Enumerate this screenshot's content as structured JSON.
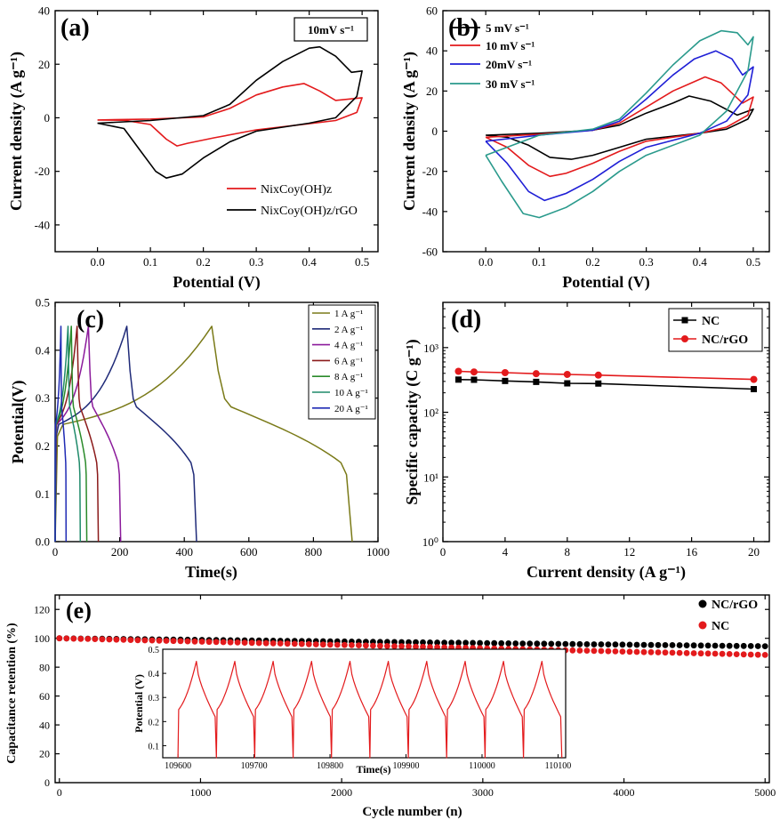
{
  "chart_data": [
    {
      "id": "a",
      "type": "line",
      "panel_label": "(a)",
      "xlabel": "Potential (V)",
      "ylabel": "Current density (A g⁻¹)",
      "xlim": [
        -0.08,
        0.53
      ],
      "ylim": [
        -50,
        40
      ],
      "xticks": [
        0.0,
        0.1,
        0.2,
        0.3,
        0.4,
        0.5
      ],
      "yticks": [
        -40,
        -20,
        0,
        20,
        40
      ],
      "xtick_labels": [
        "0.0",
        "0.1",
        "0.2",
        "0.3",
        "0.4",
        "0.5"
      ],
      "ytick_labels": [
        "-40",
        "-20",
        "0",
        "20",
        "40"
      ],
      "annotation": "10mV s⁻¹",
      "legend": [
        "NixCoy(OH)z",
        "NixCoy(OH)z/rGO"
      ],
      "series": [
        {
          "name": "NixCoy(OH)z",
          "color": "#e31a1c",
          "points": [
            [
              0.0,
              -0.8
            ],
            [
              0.1,
              -0.5
            ],
            [
              0.2,
              0.3
            ],
            [
              0.25,
              3.5
            ],
            [
              0.3,
              8.5
            ],
            [
              0.35,
              11.5
            ],
            [
              0.39,
              12.8
            ],
            [
              0.42,
              10
            ],
            [
              0.45,
              6.5
            ],
            [
              0.5,
              7.5
            ],
            [
              0.49,
              2
            ],
            [
              0.45,
              -1
            ],
            [
              0.4,
              -2.2
            ],
            [
              0.3,
              -4.5
            ],
            [
              0.22,
              -7.5
            ],
            [
              0.17,
              -9.5
            ],
            [
              0.15,
              -10.5
            ],
            [
              0.13,
              -8
            ],
            [
              0.1,
              -2.5
            ],
            [
              0.05,
              -0.9
            ],
            [
              0.0,
              -0.8
            ]
          ]
        },
        {
          "name": "NixCoy(OH)z/rGO",
          "color": "#000000",
          "points": [
            [
              0.0,
              -2
            ],
            [
              0.1,
              -1
            ],
            [
              0.2,
              0.8
            ],
            [
              0.25,
              5
            ],
            [
              0.3,
              14
            ],
            [
              0.35,
              21
            ],
            [
              0.4,
              26
            ],
            [
              0.42,
              26.5
            ],
            [
              0.45,
              23
            ],
            [
              0.48,
              17
            ],
            [
              0.5,
              17.5
            ],
            [
              0.49,
              8
            ],
            [
              0.45,
              0
            ],
            [
              0.4,
              -2
            ],
            [
              0.3,
              -5
            ],
            [
              0.25,
              -9
            ],
            [
              0.2,
              -15
            ],
            [
              0.16,
              -21
            ],
            [
              0.13,
              -22.5
            ],
            [
              0.11,
              -20
            ],
            [
              0.08,
              -12
            ],
            [
              0.05,
              -4
            ],
            [
              0.0,
              -2
            ]
          ]
        }
      ]
    },
    {
      "id": "b",
      "type": "line",
      "panel_label": "(b)",
      "xlabel": "Potential (V)",
      "ylabel": "Current density (A g⁻¹)",
      "xlim": [
        -0.08,
        0.53
      ],
      "ylim": [
        -60,
        60
      ],
      "xticks": [
        0.0,
        0.1,
        0.2,
        0.3,
        0.4,
        0.5
      ],
      "yticks": [
        -60,
        -40,
        -20,
        0,
        20,
        40,
        60
      ],
      "xtick_labels": [
        "0.0",
        "0.1",
        "0.2",
        "0.3",
        "0.4",
        "0.5"
      ],
      "ytick_labels": [
        "-60",
        "-40",
        "-20",
        "0",
        "20",
        "40",
        "60"
      ],
      "legend": [
        "5 mV s⁻¹",
        "10 mV s⁻¹",
        "20mV s⁻¹",
        "30 mV s⁻¹"
      ],
      "series": [
        {
          "name": "5 mV s⁻¹",
          "color": "#000000",
          "points": [
            [
              0.0,
              -2
            ],
            [
              0.1,
              -1
            ],
            [
              0.2,
              0.5
            ],
            [
              0.25,
              3
            ],
            [
              0.3,
              9
            ],
            [
              0.35,
              14
            ],
            [
              0.38,
              17.5
            ],
            [
              0.42,
              15
            ],
            [
              0.47,
              8
            ],
            [
              0.5,
              11
            ],
            [
              0.49,
              6
            ],
            [
              0.45,
              1
            ],
            [
              0.4,
              -1
            ],
            [
              0.3,
              -4
            ],
            [
              0.25,
              -8
            ],
            [
              0.2,
              -12
            ],
            [
              0.16,
              -14
            ],
            [
              0.12,
              -13
            ],
            [
              0.08,
              -7
            ],
            [
              0.04,
              -3
            ],
            [
              0.0,
              -2
            ]
          ]
        },
        {
          "name": "10 mV s⁻¹",
          "color": "#e31a1c",
          "points": [
            [
              0.0,
              -3
            ],
            [
              0.1,
              -1.5
            ],
            [
              0.2,
              0.5
            ],
            [
              0.25,
              4
            ],
            [
              0.3,
              12
            ],
            [
              0.35,
              20
            ],
            [
              0.41,
              27
            ],
            [
              0.44,
              24
            ],
            [
              0.48,
              14
            ],
            [
              0.5,
              17
            ],
            [
              0.49,
              8
            ],
            [
              0.45,
              2
            ],
            [
              0.4,
              -1
            ],
            [
              0.3,
              -5
            ],
            [
              0.25,
              -10
            ],
            [
              0.2,
              -16
            ],
            [
              0.15,
              -21
            ],
            [
              0.12,
              -22.5
            ],
            [
              0.08,
              -17
            ],
            [
              0.04,
              -8
            ],
            [
              0.0,
              -3
            ]
          ]
        },
        {
          "name": "20mV s⁻¹",
          "color": "#1f1fd6",
          "points": [
            [
              0.0,
              -5
            ],
            [
              0.1,
              -2
            ],
            [
              0.2,
              0.5
            ],
            [
              0.25,
              5
            ],
            [
              0.3,
              16
            ],
            [
              0.35,
              28
            ],
            [
              0.39,
              36
            ],
            [
              0.43,
              40
            ],
            [
              0.46,
              36
            ],
            [
              0.48,
              28
            ],
            [
              0.5,
              32
            ],
            [
              0.49,
              18
            ],
            [
              0.45,
              5
            ],
            [
              0.4,
              -1
            ],
            [
              0.3,
              -8
            ],
            [
              0.25,
              -15
            ],
            [
              0.2,
              -24
            ],
            [
              0.15,
              -31
            ],
            [
              0.11,
              -34.5
            ],
            [
              0.08,
              -30
            ],
            [
              0.04,
              -16
            ],
            [
              0.0,
              -5
            ]
          ]
        },
        {
          "name": "30 mV s⁻¹",
          "color": "#2a9a8c",
          "points": [
            [
              0.0,
              -12
            ],
            [
              0.1,
              -2
            ],
            [
              0.2,
              1
            ],
            [
              0.25,
              6
            ],
            [
              0.3,
              19
            ],
            [
              0.35,
              33
            ],
            [
              0.4,
              45
            ],
            [
              0.44,
              50
            ],
            [
              0.47,
              49
            ],
            [
              0.49,
              43
            ],
            [
              0.5,
              47
            ],
            [
              0.49,
              30
            ],
            [
              0.45,
              10
            ],
            [
              0.4,
              -2
            ],
            [
              0.3,
              -12
            ],
            [
              0.25,
              -20
            ],
            [
              0.2,
              -30
            ],
            [
              0.15,
              -38
            ],
            [
              0.1,
              -43
            ],
            [
              0.07,
              -41
            ],
            [
              0.03,
              -25
            ],
            [
              0.0,
              -12
            ]
          ]
        }
      ]
    },
    {
      "id": "c",
      "type": "line",
      "panel_label": "(c)",
      "xlabel": "Time(s)",
      "ylabel": "Potential(V)",
      "xlim": [
        0,
        1000
      ],
      "ylim": [
        0.0,
        0.5
      ],
      "xticks": [
        0,
        200,
        400,
        600,
        800,
        1000
      ],
      "yticks": [
        0.0,
        0.1,
        0.2,
        0.3,
        0.4,
        0.5
      ],
      "xtick_labels": [
        "0",
        "200",
        "400",
        "600",
        "800",
        "1000"
      ],
      "ytick_labels": [
        "0.0",
        "0.1",
        "0.2",
        "0.3",
        "0.4",
        "0.5"
      ],
      "legend": [
        "1 A g⁻¹",
        "2 A g⁻¹",
        "4 A g⁻¹",
        "6 A g⁻¹",
        "8 A g⁻¹",
        "10 A g⁻¹",
        "20 A g⁻¹"
      ],
      "series": [
        {
          "name": "1 A g⁻¹",
          "color": "#7a7a18",
          "t_charge": 485,
          "t_end": 920
        },
        {
          "name": "2 A g⁻¹",
          "color": "#1f2a78",
          "t_charge": 222,
          "t_end": 438
        },
        {
          "name": "4 A g⁻¹",
          "color": "#8b1a9b",
          "t_charge": 103,
          "t_end": 203
        },
        {
          "name": "6 A g⁻¹",
          "color": "#8b1a1a",
          "t_charge": 68,
          "t_end": 134
        },
        {
          "name": "8 A g⁻¹",
          "color": "#2a8a2a",
          "t_charge": 50,
          "t_end": 98
        },
        {
          "name": "10 A g⁻¹",
          "color": "#1f8a6a",
          "t_charge": 40,
          "t_end": 78
        },
        {
          "name": "20 A g⁻¹",
          "color": "#1f2ab4",
          "t_charge": 18,
          "t_end": 34
        }
      ]
    },
    {
      "id": "d",
      "type": "scatter",
      "panel_label": "(d)",
      "xlabel": "Current density (A g⁻¹)",
      "ylabel": "Specific capacity (C g⁻¹)",
      "yscale": "log",
      "xlim": [
        0,
        21
      ],
      "ylim": [
        1,
        5000
      ],
      "xticks": [
        0,
        4,
        8,
        12,
        16,
        20
      ],
      "xtick_labels": [
        "0",
        "4",
        "8",
        "12",
        "16",
        "20"
      ],
      "ytick_labels": [
        "10⁰",
        "10¹",
        "10²",
        "10³"
      ],
      "legend": [
        "NC",
        "NC/rGO"
      ],
      "x": [
        1,
        2,
        4,
        6,
        8,
        10,
        20
      ],
      "series": [
        {
          "name": "NC",
          "color": "#000000",
          "marker": "square",
          "values": [
            320,
            318,
            305,
            295,
            280,
            278,
            228
          ]
        },
        {
          "name": "NC/rGO",
          "color": "#e31a1c",
          "marker": "circle",
          "values": [
            430,
            420,
            410,
            395,
            385,
            375,
            322
          ]
        }
      ]
    },
    {
      "id": "e",
      "type": "scatter",
      "panel_label": "(e)",
      "xlabel": "Cycle number (n)",
      "ylabel": "Capacitance retention (%)",
      "xlim": [
        -30,
        5030
      ],
      "ylim": [
        0,
        130
      ],
      "xticks": [
        0,
        1000,
        2000,
        3000,
        4000,
        5000
      ],
      "yticks": [
        0,
        20,
        40,
        60,
        80,
        100,
        120
      ],
      "xtick_labels": [
        "0",
        "1000",
        "2000",
        "3000",
        "4000",
        "5000"
      ],
      "ytick_labels": [
        "0",
        "20",
        "40",
        "60",
        "80",
        "100",
        "120"
      ],
      "legend": [
        "NC/rGO",
        "NC"
      ],
      "series": [
        {
          "name": "NC/rGO",
          "color": "#000000",
          "start": 100,
          "end": 94.5,
          "count": 100
        },
        {
          "name": "NC",
          "color": "#e31a1c",
          "start": 100,
          "end": 88.5,
          "count": 100
        }
      ],
      "inset": {
        "xlabel": "Time(s)",
        "ylabel": "Potential (V)",
        "xlim": [
          109580,
          110110
        ],
        "ylim": [
          0.05,
          0.5
        ],
        "xticks": [
          109600,
          109700,
          109800,
          109900,
          110000,
          110100
        ],
        "yticks": [
          0.1,
          0.2,
          0.3,
          0.4,
          0.5
        ],
        "xtick_labels": [
          "109600",
          "109700",
          "109800",
          "109900",
          "110000",
          "110100"
        ],
        "ytick_labels": [
          "0.1",
          "0.2",
          "0.3",
          "0.4",
          "0.5"
        ],
        "color": "#e31a1c",
        "cycle_start": 109600,
        "cycle_period": 50.5,
        "cycles": 10,
        "v_min": 0.05,
        "v_max": 0.45
      }
    }
  ]
}
